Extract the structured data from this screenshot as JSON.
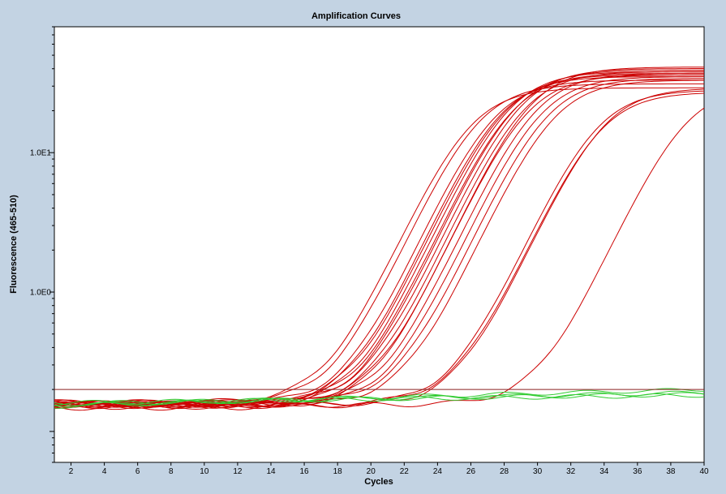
{
  "chart_data": {
    "type": "line",
    "title": "Amplification Curves",
    "xlabel": "Cycles",
    "ylabel": "Fluorescence (465-510)",
    "xlim": [
      1,
      40
    ],
    "ylim": [
      0.06,
      80
    ],
    "yscale": "log",
    "x_ticks": [
      "2",
      "4",
      "6",
      "8",
      "10",
      "12",
      "14",
      "16",
      "18",
      "20",
      "22",
      "24",
      "26",
      "28",
      "30",
      "32",
      "34",
      "36",
      "38",
      "40"
    ],
    "y_tick_labels": [
      {
        "value": 1,
        "label": "1.0E0"
      },
      {
        "value": 10,
        "label": "1.0E1"
      }
    ],
    "threshold": 0.2,
    "grid": false,
    "colors": {
      "background": "#c3d3e3",
      "plot_area": "#ffffff",
      "amplified": "#cc0000",
      "negative": "#33cc33",
      "threshold": "#8b2020"
    },
    "series": [
      {
        "group": "amplified",
        "ct": 20.6,
        "plateau": 29,
        "base": 0.163
      },
      {
        "group": "amplified",
        "ct": 21.1,
        "plateau": 31,
        "base": 0.16
      },
      {
        "group": "amplified",
        "ct": 22.0,
        "plateau": 33,
        "base": 0.158
      },
      {
        "group": "amplified",
        "ct": 22.4,
        "plateau": 35,
        "base": 0.155
      },
      {
        "group": "amplified",
        "ct": 22.6,
        "plateau": 36,
        "base": 0.16
      },
      {
        "group": "amplified",
        "ct": 22.9,
        "plateau": 38,
        "base": 0.152
      },
      {
        "group": "amplified",
        "ct": 23.1,
        "plateau": 37,
        "base": 0.158
      },
      {
        "group": "amplified",
        "ct": 23.3,
        "plateau": 39,
        "base": 0.15
      },
      {
        "group": "amplified",
        "ct": 23.6,
        "plateau": 40,
        "base": 0.162
      },
      {
        "group": "amplified",
        "ct": 23.8,
        "plateau": 38,
        "base": 0.155
      },
      {
        "group": "amplified",
        "ct": 24.0,
        "plateau": 36,
        "base": 0.16
      },
      {
        "group": "amplified",
        "ct": 24.2,
        "plateau": 41,
        "base": 0.148
      },
      {
        "group": "amplified",
        "ct": 24.5,
        "plateau": 37,
        "base": 0.157
      },
      {
        "group": "amplified",
        "ct": 24.8,
        "plateau": 35,
        "base": 0.153
      },
      {
        "group": "amplified",
        "ct": 25.2,
        "plateau": 34,
        "base": 0.16
      },
      {
        "group": "amplified",
        "ct": 25.6,
        "plateau": 33,
        "base": 0.156
      },
      {
        "group": "amplified",
        "ct": 28.2,
        "plateau": 28,
        "base": 0.155
      },
      {
        "group": "amplified",
        "ct": 28.4,
        "plateau": 27,
        "base": 0.158
      },
      {
        "group": "amplified",
        "ct": 28.6,
        "plateau": 29,
        "base": 0.152
      },
      {
        "group": "amplified",
        "ct": 33.5,
        "plateau": 30,
        "base": 0.155
      },
      {
        "group": "negative",
        "start": 0.158,
        "end": 0.185
      },
      {
        "group": "negative",
        "start": 0.155,
        "end": 0.19
      },
      {
        "group": "negative",
        "start": 0.152,
        "end": 0.2
      },
      {
        "group": "negative",
        "start": 0.16,
        "end": 0.182
      }
    ]
  }
}
